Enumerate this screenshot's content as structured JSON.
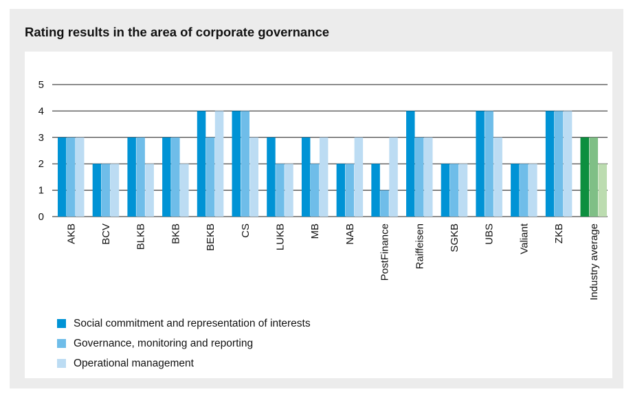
{
  "chart_data": {
    "type": "bar",
    "title": "Rating results in the area of corporate governance",
    "categories": [
      "AKB",
      "BCV",
      "BLKB",
      "BKB",
      "BEKB",
      "CS",
      "LUKB",
      "MB",
      "NAB",
      "PostFinance",
      "Raiffeisen",
      "SGKB",
      "UBS",
      "Valiant",
      "ZKB",
      "Industry average"
    ],
    "series": [
      {
        "name": "Social commitment and representation of interests",
        "values": [
          3,
          2,
          3,
          3,
          4,
          4,
          3,
          3,
          2,
          2,
          4,
          2,
          4,
          2,
          4,
          3
        ]
      },
      {
        "name": "Governance, monitoring and reporting",
        "values": [
          3,
          2,
          3,
          3,
          3,
          4,
          2,
          2,
          2,
          1,
          3,
          2,
          4,
          2,
          4,
          3
        ]
      },
      {
        "name": "Operational management",
        "values": [
          3,
          2,
          2,
          2,
          4,
          3,
          2,
          3,
          3,
          3,
          3,
          2,
          3,
          2,
          4,
          2
        ]
      }
    ],
    "ylim": [
      0,
      5
    ],
    "yticks": [
      0,
      1,
      2,
      3,
      4,
      5
    ],
    "grid": true,
    "legend_position": "bottom-left",
    "colors": {
      "series": [
        "#0093d5",
        "#6fbde9",
        "#bcdcf3"
      ],
      "highlight_series": [
        "#0d8f3f",
        "#7fbf86",
        "#bcdcb0"
      ],
      "grid": "#1a1a1a",
      "panel": "#ececec"
    }
  }
}
